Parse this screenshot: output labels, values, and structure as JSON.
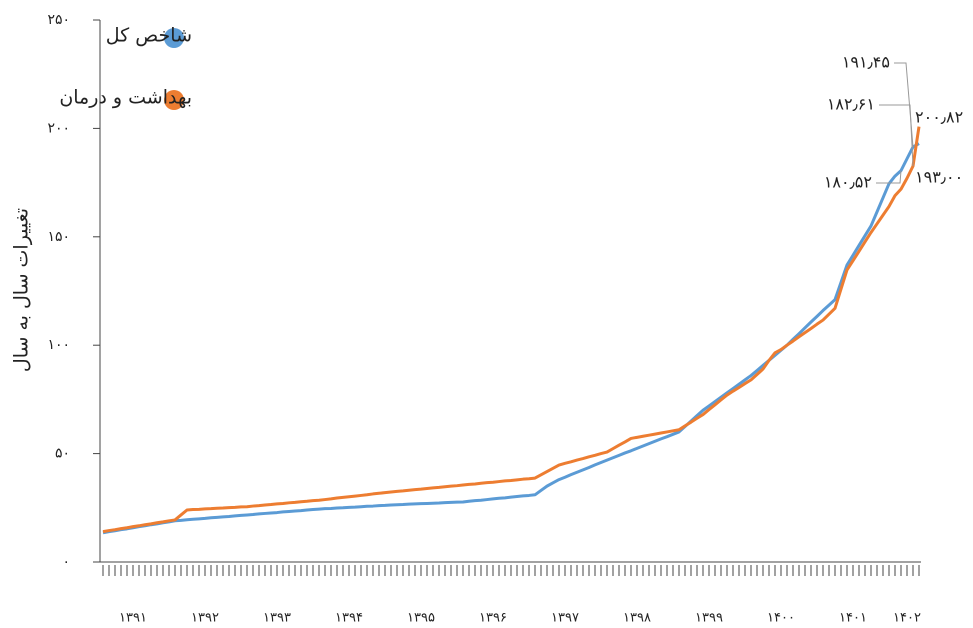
{
  "chart_data": {
    "type": "line",
    "y_label": "تغییرات سال به سال",
    "categories": [
      null,
      null,
      null,
      null,
      null,
      "۱۳۹۱",
      null,
      null,
      null,
      null,
      null,
      null,
      null,
      null,
      null,
      null,
      null,
      "۱۳۹۲",
      null,
      null,
      null,
      null,
      null,
      null,
      null,
      null,
      null,
      null,
      null,
      "۱۳۹۳",
      null,
      null,
      null,
      null,
      null,
      null,
      null,
      null,
      null,
      null,
      null,
      "۱۳۹۴",
      null,
      null,
      null,
      null,
      null,
      null,
      null,
      null,
      null,
      null,
      null,
      "۱۳۹۵",
      null,
      null,
      null,
      null,
      null,
      null,
      null,
      null,
      null,
      null,
      null,
      "۱۳۹۶",
      null,
      null,
      null,
      null,
      null,
      null,
      null,
      null,
      null,
      null,
      null,
      "۱۳۹۷",
      null,
      null,
      null,
      null,
      null,
      null,
      null,
      null,
      null,
      null,
      null,
      "۱۳۹۸",
      null,
      null,
      null,
      null,
      null,
      null,
      null,
      null,
      null,
      null,
      null,
      "۱۳۹۹",
      null,
      null,
      null,
      null,
      null,
      null,
      null,
      null,
      null,
      null,
      null,
      "۱۴۰۰",
      null,
      null,
      null,
      null,
      null,
      null,
      null,
      null,
      null,
      null,
      null,
      "۱۴۰۱",
      null,
      null,
      null,
      null,
      null,
      null,
      null,
      null,
      "۱۴۰۲",
      null,
      null
    ],
    "series": [
      {
        "name": "شاخص کل",
        "color": "#5b9bd5",
        "values": [
          13.5,
          14,
          14.4,
          14.9,
          15.3,
          15.8,
          16.3,
          16.7,
          17.2,
          17.6,
          18.1,
          18.5,
          19,
          19.2,
          19.5,
          19.7,
          19.9,
          20.1,
          20.4,
          20.6,
          20.8,
          21,
          21.3,
          21.5,
          21.7,
          21.9,
          22.2,
          22.4,
          22.6,
          22.8,
          23.1,
          23.3,
          23.5,
          23.7,
          24,
          24.2,
          24.4,
          24.6,
          24.7,
          24.9,
          25,
          25.2,
          25.3,
          25.5,
          25.7,
          25.8,
          26,
          26.1,
          26.3,
          26.4,
          26.5,
          26.7,
          26.8,
          26.9,
          27,
          27.1,
          27.2,
          27.4,
          27.5,
          27.6,
          27.7,
          28,
          28.3,
          28.5,
          28.8,
          29.1,
          29.4,
          29.6,
          29.9,
          30.2,
          30.5,
          30.7,
          31,
          33,
          35,
          36.5,
          38,
          39.1,
          40.3,
          41.4,
          42.5,
          43.6,
          44.8,
          45.9,
          47,
          48.1,
          49.2,
          50.3,
          51.3,
          52.4,
          53.5,
          54.6,
          55.7,
          56.8,
          57.8,
          58.9,
          60,
          62.5,
          65,
          67.5,
          70,
          72,
          74,
          76,
          78,
          80,
          82,
          84,
          86,
          88.3,
          90.7,
          93,
          95.3,
          97.7,
          100,
          102.7,
          105.3,
          108,
          110.7,
          113.3,
          116,
          118.5,
          121,
          129,
          137,
          141.5,
          146,
          150.5,
          155,
          161.5,
          168,
          174.5,
          178,
          180.52,
          186,
          191.45,
          193.0
        ],
        "value_labels": [
          null,
          null,
          null,
          null,
          null,
          null,
          null,
          null,
          null,
          null,
          null,
          null,
          null,
          null,
          null,
          null,
          null,
          null,
          null,
          null,
          null,
          null,
          null,
          null,
          null,
          null,
          null,
          null,
          null,
          null,
          null,
          null,
          null,
          null,
          null,
          null,
          null,
          null,
          null,
          null,
          null,
          null,
          null,
          null,
          null,
          null,
          null,
          null,
          null,
          null,
          null,
          null,
          null,
          null,
          null,
          null,
          null,
          null,
          null,
          null,
          null,
          null,
          null,
          null,
          null,
          null,
          null,
          null,
          null,
          null,
          null,
          null,
          null,
          null,
          null,
          null,
          null,
          null,
          null,
          null,
          null,
          null,
          null,
          null,
          null,
          null,
          null,
          null,
          null,
          null,
          null,
          null,
          null,
          null,
          null,
          null,
          null,
          null,
          null,
          null,
          null,
          null,
          null,
          null,
          null,
          null,
          null,
          null,
          null,
          null,
          null,
          null,
          null,
          null,
          null,
          null,
          null,
          null,
          null,
          null,
          null,
          null,
          null,
          null,
          null,
          null,
          null,
          null,
          null,
          null,
          null,
          null,
          null,
          "۱۸۰٫۵۲",
          null,
          "۱۹۱٫۴۵",
          "۱۹۳٫۰۰"
        ]
      },
      {
        "name": "بهداشت و درمان",
        "color": "#ed7d31",
        "values": [
          14,
          14.5,
          14.9,
          15.4,
          15.8,
          16.3,
          16.7,
          17.2,
          17.6,
          18.1,
          18.5,
          19,
          19.4,
          21.7,
          24,
          24.2,
          24.3,
          24.5,
          24.6,
          24.8,
          24.9,
          25.1,
          25.2,
          25.4,
          25.5,
          25.8,
          26,
          26.3,
          26.5,
          26.8,
          27,
          27.3,
          27.5,
          27.8,
          28,
          28.3,
          28.5,
          28.8,
          29.1,
          29.5,
          29.8,
          30.1,
          30.4,
          30.7,
          31,
          31.4,
          31.7,
          32,
          32.3,
          32.6,
          32.8,
          33.1,
          33.4,
          33.6,
          33.9,
          34.2,
          34.4,
          34.7,
          35,
          35.2,
          35.5,
          35.8,
          36,
          36.3,
          36.6,
          36.8,
          37.1,
          37.4,
          37.6,
          37.9,
          38.2,
          38.4,
          38.7,
          40.2,
          41.7,
          43.2,
          44.7,
          45.5,
          46.2,
          47,
          47.7,
          48.5,
          49.2,
          50,
          50.7,
          52.3,
          53.9,
          55.4,
          57,
          57.5,
          58,
          58.5,
          59,
          59.5,
          60,
          60.5,
          61,
          62.8,
          64.5,
          66.3,
          68,
          70.3,
          72.5,
          74.8,
          77,
          78.8,
          80.5,
          82.3,
          84,
          86.5,
          89,
          93,
          96.5,
          98,
          100,
          101.9,
          103.9,
          105.8,
          107.7,
          109.7,
          111.6,
          114.3,
          117,
          125.9,
          134.7,
          139,
          143.3,
          147.7,
          152,
          156,
          160,
          164,
          169,
          172,
          177,
          182.61,
          200.82
        ],
        "value_labels": [
          null,
          null,
          null,
          null,
          null,
          null,
          null,
          null,
          null,
          null,
          null,
          null,
          null,
          null,
          null,
          null,
          null,
          null,
          null,
          null,
          null,
          null,
          null,
          null,
          null,
          null,
          null,
          null,
          null,
          null,
          null,
          null,
          null,
          null,
          null,
          null,
          null,
          null,
          null,
          null,
          null,
          null,
          null,
          null,
          null,
          null,
          null,
          null,
          null,
          null,
          null,
          null,
          null,
          null,
          null,
          null,
          null,
          null,
          null,
          null,
          null,
          null,
          null,
          null,
          null,
          null,
          null,
          null,
          null,
          null,
          null,
          null,
          null,
          null,
          null,
          null,
          null,
          null,
          null,
          null,
          null,
          null,
          null,
          null,
          null,
          null,
          null,
          null,
          null,
          null,
          null,
          null,
          null,
          null,
          null,
          null,
          null,
          null,
          null,
          null,
          null,
          null,
          null,
          null,
          null,
          null,
          null,
          null,
          null,
          null,
          null,
          null,
          null,
          null,
          null,
          null,
          null,
          null,
          null,
          null,
          null,
          null,
          null,
          null,
          null,
          null,
          null,
          null,
          null,
          null,
          null,
          null,
          null,
          null,
          null,
          "۱۸۲٫۶۱",
          "۲۰۰٫۸۲"
        ]
      }
    ],
    "ylim": [
      0,
      250
    ],
    "yticks": [
      {
        "value": 0,
        "label": "٠"
      },
      {
        "value": 50,
        "label": "۵۰"
      },
      {
        "value": 100,
        "label": "۱۰۰"
      },
      {
        "value": 150,
        "label": "۱۵۰"
      },
      {
        "value": 200,
        "label": "۲۰۰"
      },
      {
        "value": 250,
        "label": "۲۵۰"
      }
    ],
    "grid": false,
    "legend": "top-left"
  }
}
